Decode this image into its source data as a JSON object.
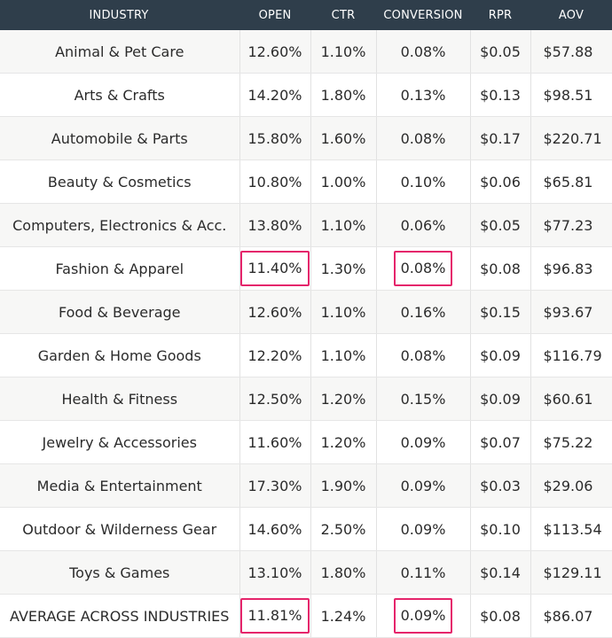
{
  "headers": {
    "industry": "INDUSTRY",
    "open": "OPEN",
    "ctr": "CTR",
    "conversion": "CONVERSION",
    "rpr": "RPR",
    "aov": "AOV"
  },
  "rows": [
    {
      "industry": "Animal & Pet Care",
      "open": "12.60%",
      "ctr": "1.10%",
      "conversion": "0.08%",
      "rpr": "$0.05",
      "aov": "$57.88"
    },
    {
      "industry": "Arts & Crafts",
      "open": "14.20%",
      "ctr": "1.80%",
      "conversion": "0.13%",
      "rpr": "$0.13",
      "aov": "$98.51"
    },
    {
      "industry": "Automobile & Parts",
      "open": "15.80%",
      "ctr": "1.60%",
      "conversion": "0.08%",
      "rpr": "$0.17",
      "aov": "$220.71"
    },
    {
      "industry": "Beauty & Cosmetics",
      "open": "10.80%",
      "ctr": "1.00%",
      "conversion": "0.10%",
      "rpr": "$0.06",
      "aov": "$65.81"
    },
    {
      "industry": "Computers, Electronics & Acc.",
      "open": "13.80%",
      "ctr": "1.10%",
      "conversion": "0.06%",
      "rpr": "$0.05",
      "aov": "$77.23"
    },
    {
      "industry": "Fashion & Apparel",
      "open": "11.40%",
      "ctr": "1.30%",
      "conversion": "0.08%",
      "rpr": "$0.08",
      "aov": "$96.83",
      "highlight": true
    },
    {
      "industry": "Food & Beverage",
      "open": "12.60%",
      "ctr": "1.10%",
      "conversion": "0.16%",
      "rpr": "$0.15",
      "aov": "$93.67"
    },
    {
      "industry": "Garden & Home Goods",
      "open": "12.20%",
      "ctr": "1.10%",
      "conversion": "0.08%",
      "rpr": "$0.09",
      "aov": "$116.79"
    },
    {
      "industry": "Health & Fitness",
      "open": "12.50%",
      "ctr": "1.20%",
      "conversion": "0.15%",
      "rpr": "$0.09",
      "aov": "$60.61"
    },
    {
      "industry": "Jewelry & Accessories",
      "open": "11.60%",
      "ctr": "1.20%",
      "conversion": "0.09%",
      "rpr": "$0.07",
      "aov": "$75.22"
    },
    {
      "industry": "Media & Entertainment",
      "open": "17.30%",
      "ctr": "1.90%",
      "conversion": "0.09%",
      "rpr": "$0.03",
      "aov": "$29.06"
    },
    {
      "industry": "Outdoor & Wilderness Gear",
      "open": "14.60%",
      "ctr": "2.50%",
      "conversion": "0.09%",
      "rpr": "$0.10",
      "aov": "$113.54"
    },
    {
      "industry": "Toys & Games",
      "open": "13.10%",
      "ctr": "1.80%",
      "conversion": "0.11%",
      "rpr": "$0.14",
      "aov": "$129.11"
    },
    {
      "industry": "AVERAGE ACROSS INDUSTRIES",
      "open": "11.81%",
      "ctr": "1.24%",
      "conversion": "0.09%",
      "rpr": "$0.08",
      "aov": "$86.07",
      "highlight": true
    }
  ],
  "colors": {
    "header_bg": "#2f3e4b",
    "highlight_border": "#e5246b"
  }
}
